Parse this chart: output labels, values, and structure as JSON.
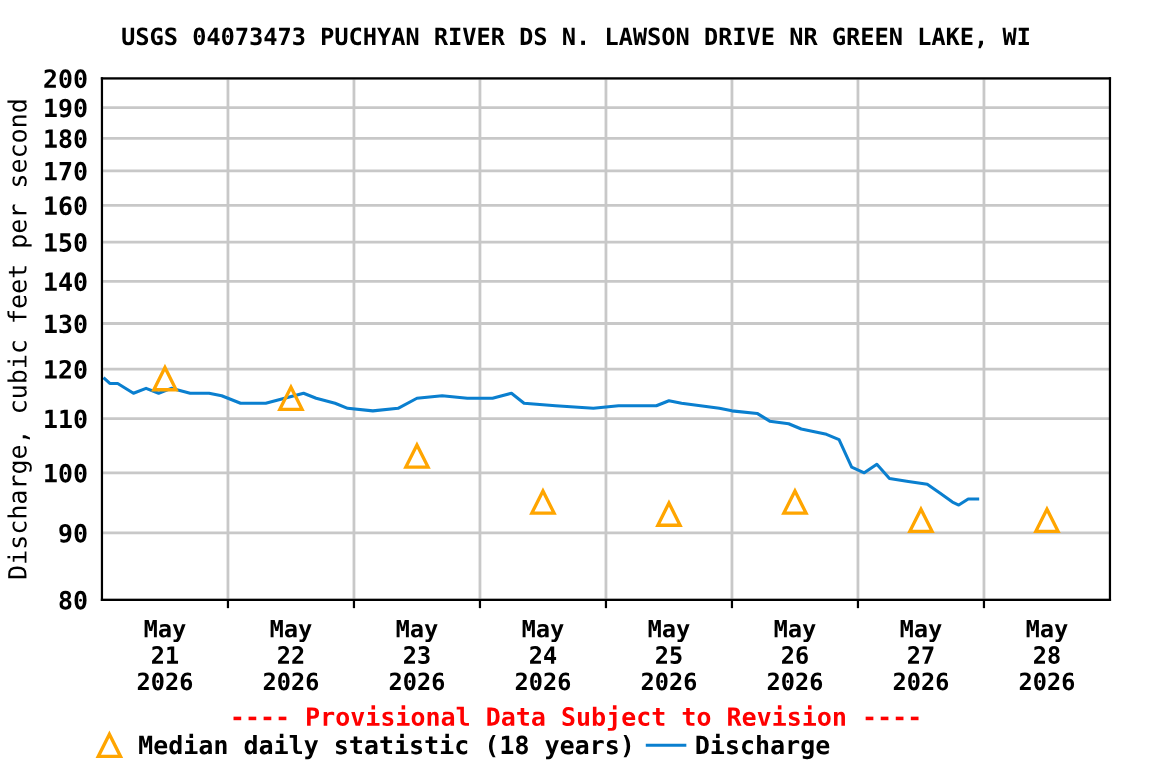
{
  "chart_data": {
    "type": "line",
    "title": "USGS 04073473 PUCHYAN RIVER DS N. LAWSON DRIVE NR GREEN LAKE, WI",
    "ylabel": "Discharge, cubic feet per second",
    "log": "y",
    "grid": true,
    "legend": "bottom",
    "ylim": [
      80,
      200
    ],
    "yticks": [
      80,
      90,
      100,
      110,
      120,
      130,
      140,
      150,
      160,
      170,
      180,
      190,
      200
    ],
    "xlim": [
      "2026-05-21T00:00",
      "2026-05-29T00:00"
    ],
    "xticks": [
      {
        "value": "2026-05-21T12:00",
        "label": "May\n21\n2026"
      },
      {
        "value": "2026-05-22T00:00",
        "label": null
      },
      {
        "value": "2026-05-22T12:00",
        "label": "May\n22\n2026"
      },
      {
        "value": "2026-05-23T00:00",
        "label": null
      },
      {
        "value": "2026-05-23T12:00",
        "label": "May\n23\n2026"
      },
      {
        "value": "2026-05-24T00:00",
        "label": null
      },
      {
        "value": "2026-05-24T12:00",
        "label": "May\n24\n2026"
      },
      {
        "value": "2026-05-25T00:00",
        "label": null
      },
      {
        "value": "2026-05-25T12:00",
        "label": "May\n25\n2026"
      },
      {
        "value": "2026-05-26T00:00",
        "label": null
      },
      {
        "value": "2026-05-26T12:00",
        "label": "May\n26\n2026"
      },
      {
        "value": "2026-05-27T00:00",
        "label": null
      },
      {
        "value": "2026-05-27T12:00",
        "label": "May\n27\n2026"
      },
      {
        "value": "2026-05-28T00:00",
        "label": null
      },
      {
        "value": "2026-05-28T12:00",
        "label": "May\n28\n2026"
      }
    ],
    "annotations": [
      "---- Provisional Data Subject to Revision ----"
    ],
    "series": [
      {
        "name": "Median daily statistic (18 years)",
        "type": "scatter",
        "marker": "triangle",
        "color": "#ffa500",
        "x": [
          "2026-05-21T12:00",
          "2026-05-22T12:00",
          "2026-05-23T12:00",
          "2026-05-24T12:00",
          "2026-05-25T12:00",
          "2026-05-26T12:00",
          "2026-05-27T12:00",
          "2026-05-28T12:00"
        ],
        "values": [
          118,
          114,
          103,
          95,
          93,
          95,
          92,
          92
        ]
      },
      {
        "name": "Discharge",
        "marker": "none",
        "color": "#0a7fcf",
        "x": [
          "2026-05-21T00:30",
          "2026-05-21T01:30",
          "2026-05-21T03:00",
          "2026-05-21T06:00",
          "2026-05-21T08:24",
          "2026-05-21T10:48",
          "2026-05-21T13:12",
          "2026-05-21T16:48",
          "2026-05-21T20:24",
          "2026-05-21T22:48",
          "2026-05-22T02:24",
          "2026-05-22T07:12",
          "2026-05-22T10:48",
          "2026-05-22T14:24",
          "2026-05-22T16:48",
          "2026-05-22T20:24",
          "2026-05-22T22:48",
          "2026-05-23T03:36",
          "2026-05-23T08:24",
          "2026-05-23T12:00",
          "2026-05-23T16:48",
          "2026-05-23T21:36",
          "2026-05-24T02:24",
          "2026-05-24T06:00",
          "2026-05-24T08:24",
          "2026-05-24T14:24",
          "2026-05-24T21:36",
          "2026-05-25T02:24",
          "2026-05-25T09:36",
          "2026-05-25T12:00",
          "2026-05-25T14:24",
          "2026-05-25T21:36",
          "2026-05-26T00:00",
          "2026-05-26T04:48",
          "2026-05-26T07:12",
          "2026-05-26T10:48",
          "2026-05-26T13:12",
          "2026-05-26T18:00",
          "2026-05-26T20:24",
          "2026-05-26T22:48",
          "2026-05-27T01:12",
          "2026-05-27T03:36",
          "2026-05-27T06:00",
          "2026-05-27T09:36",
          "2026-05-27T13:12",
          "2026-05-27T15:36",
          "2026-05-27T18:00",
          "2026-05-27T19:12",
          "2026-05-27T21:00",
          "2026-05-27T22:48"
        ],
        "values": [
          118,
          117,
          117,
          115,
          116,
          115,
          116,
          115,
          115,
          114.5,
          113,
          113,
          114,
          115,
          114,
          113,
          112,
          111.5,
          112,
          114,
          114.5,
          114,
          114,
          115,
          113,
          112.5,
          112,
          112.5,
          112.5,
          113.5,
          113,
          112,
          111.5,
          111,
          109.5,
          109,
          108,
          107,
          106,
          101,
          100,
          101.5,
          99,
          98.5,
          98,
          96.5,
          95,
          94.5,
          95.5,
          95.5
        ]
      }
    ]
  }
}
